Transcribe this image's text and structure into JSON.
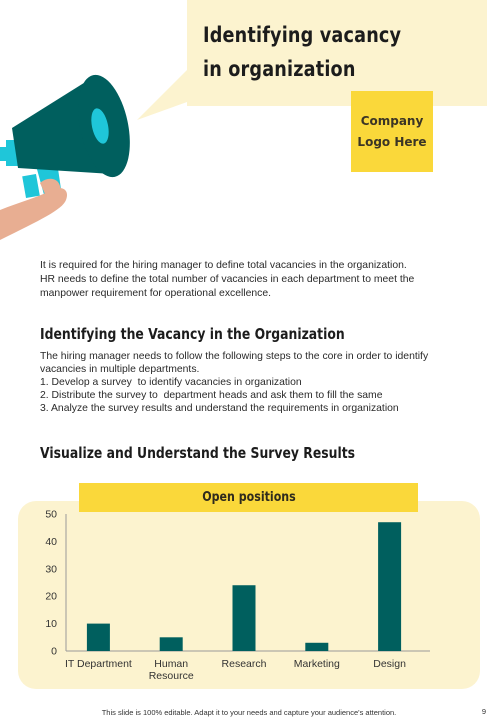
{
  "title": {
    "line1": "Identifying vacancy",
    "line2": "in organization"
  },
  "logo": {
    "line1": "Company",
    "line2": "Logo Here"
  },
  "icons": {
    "megaphone": "megaphone-icon"
  },
  "colors": {
    "accent_yellow": "#fad83a",
    "pale_yellow": "#fcf3cf",
    "teal": "#005f5e",
    "cyan": "#1fc6d9",
    "skin": "#e8ae92"
  },
  "intro": {
    "line1": "It is required for the hiring manager to define total vacancies in the organization.",
    "line2": "HR needs to define the total number  of  vacancies in each department to meet the",
    "line3": "manpower requirement for operational excellence."
  },
  "section1": {
    "heading": "Identifying the Vacancy in the Organization",
    "line1": "The hiring manager needs to follow the following steps to the core in order to identify",
    "line2": "vacancies in multiple departments.",
    "step1": "1. Develop a survey  to identify vacancies in organization",
    "step2": "2. Distribute the survey to  department heads and ask them to fill the same",
    "step3": "3. Analyze the survey results and understand the requirements in organization"
  },
  "section2": {
    "heading": "Visualize and Understand the Survey Results"
  },
  "chart_data": {
    "type": "bar",
    "title": "Open positions",
    "categories": [
      "IT Department",
      "Human Resource",
      "Research",
      "Marketing",
      "Design"
    ],
    "values": [
      10,
      5,
      24,
      3,
      47
    ],
    "ylim": [
      0,
      50
    ],
    "yticks": [
      0,
      10,
      20,
      30,
      40,
      50
    ],
    "xlabel": "",
    "ylabel": "",
    "grid": false,
    "legend": "none",
    "bar_color": "#005f5e"
  },
  "footer": {
    "text": "This slide is 100% editable. Adapt it to your needs and capture your audience's attention.",
    "page_number": "9"
  }
}
